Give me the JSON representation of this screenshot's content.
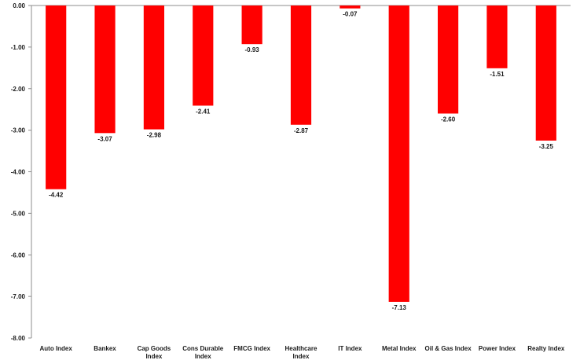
{
  "chart_data": {
    "type": "bar",
    "title": "",
    "xlabel": "",
    "ylabel": "",
    "categories": [
      "Auto Index",
      "Bankex",
      "Cap Goods Index",
      "Cons Durable Index",
      "FMCG Index",
      "Healthcare Index",
      "IT Index",
      "Metal Index",
      "Oil & Gas Index",
      "Power Index",
      "Realty Index"
    ],
    "category_lines": [
      [
        "Auto Index"
      ],
      [
        "Bankex"
      ],
      [
        "Cap Goods",
        "Index"
      ],
      [
        "Cons Durable",
        "Index"
      ],
      [
        "FMCG Index"
      ],
      [
        "Healthcare",
        "Index"
      ],
      [
        "IT Index"
      ],
      [
        "Metal Index"
      ],
      [
        "Oil & Gas Index"
      ],
      [
        "Power Index"
      ],
      [
        "Realty Index"
      ]
    ],
    "values": [
      -4.42,
      -3.07,
      -2.98,
      -2.41,
      -0.93,
      -2.87,
      -0.07,
      -7.13,
      -2.6,
      -1.51,
      -3.25
    ],
    "value_labels": [
      "-4.42",
      "-3.07",
      "-2.98",
      "-2.41",
      "-0.93",
      "-2.87",
      "-0.07",
      "-7.13",
      "-2.60",
      "-1.51",
      "-3.25"
    ],
    "ylim": [
      -8.0,
      0.0
    ],
    "yticks": [
      0.0,
      -1.0,
      -2.0,
      -3.0,
      -4.0,
      -5.0,
      -6.0,
      -7.0,
      -8.0
    ],
    "ytick_labels": [
      "0.00",
      "-1.00",
      "-2.00",
      "-3.00",
      "-4.00",
      "-5.00",
      "-6.00",
      "-7.00",
      "-8.00"
    ],
    "grid": false,
    "legend": "none",
    "colors": {
      "bar": "#ff0000",
      "axis": "#8c8c8c",
      "text": "#1a1a1a"
    }
  }
}
